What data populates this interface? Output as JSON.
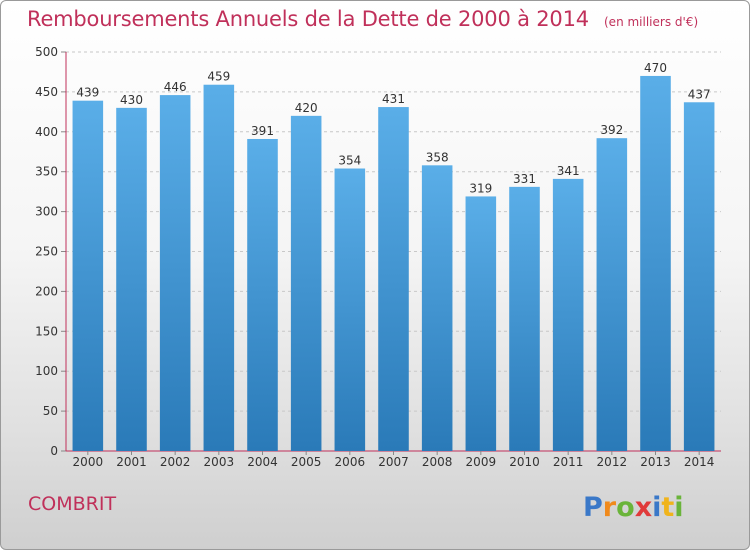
{
  "title": {
    "main": "Remboursements Annuels de la Dette de 2000 à 2014",
    "unit": "(en milliers d'€)"
  },
  "commune": "COMBRIT",
  "brand": "Proxiti",
  "colors": {
    "title": "#c0305a",
    "bar_light": "#5aaee8",
    "bar_dark": "#2a7ab8",
    "axis": "#c0305a"
  },
  "chart_data": {
    "type": "bar",
    "title": "Remboursements Annuels de la Dette de 2000 à 2014",
    "subtitle": "(en milliers d'€)",
    "xlabel": "",
    "ylabel": "",
    "categories": [
      "2000",
      "2001",
      "2002",
      "2003",
      "2004",
      "2005",
      "2006",
      "2007",
      "2008",
      "2009",
      "2010",
      "2011",
      "2012",
      "2013",
      "2014"
    ],
    "values": [
      439,
      430,
      446,
      459,
      391,
      420,
      354,
      431,
      358,
      319,
      331,
      341,
      392,
      470,
      437
    ],
    "ylim": [
      0,
      500
    ],
    "yticks": [
      0,
      50,
      100,
      150,
      200,
      250,
      300,
      350,
      400,
      450,
      500
    ],
    "grid": true,
    "data_labels": true
  }
}
